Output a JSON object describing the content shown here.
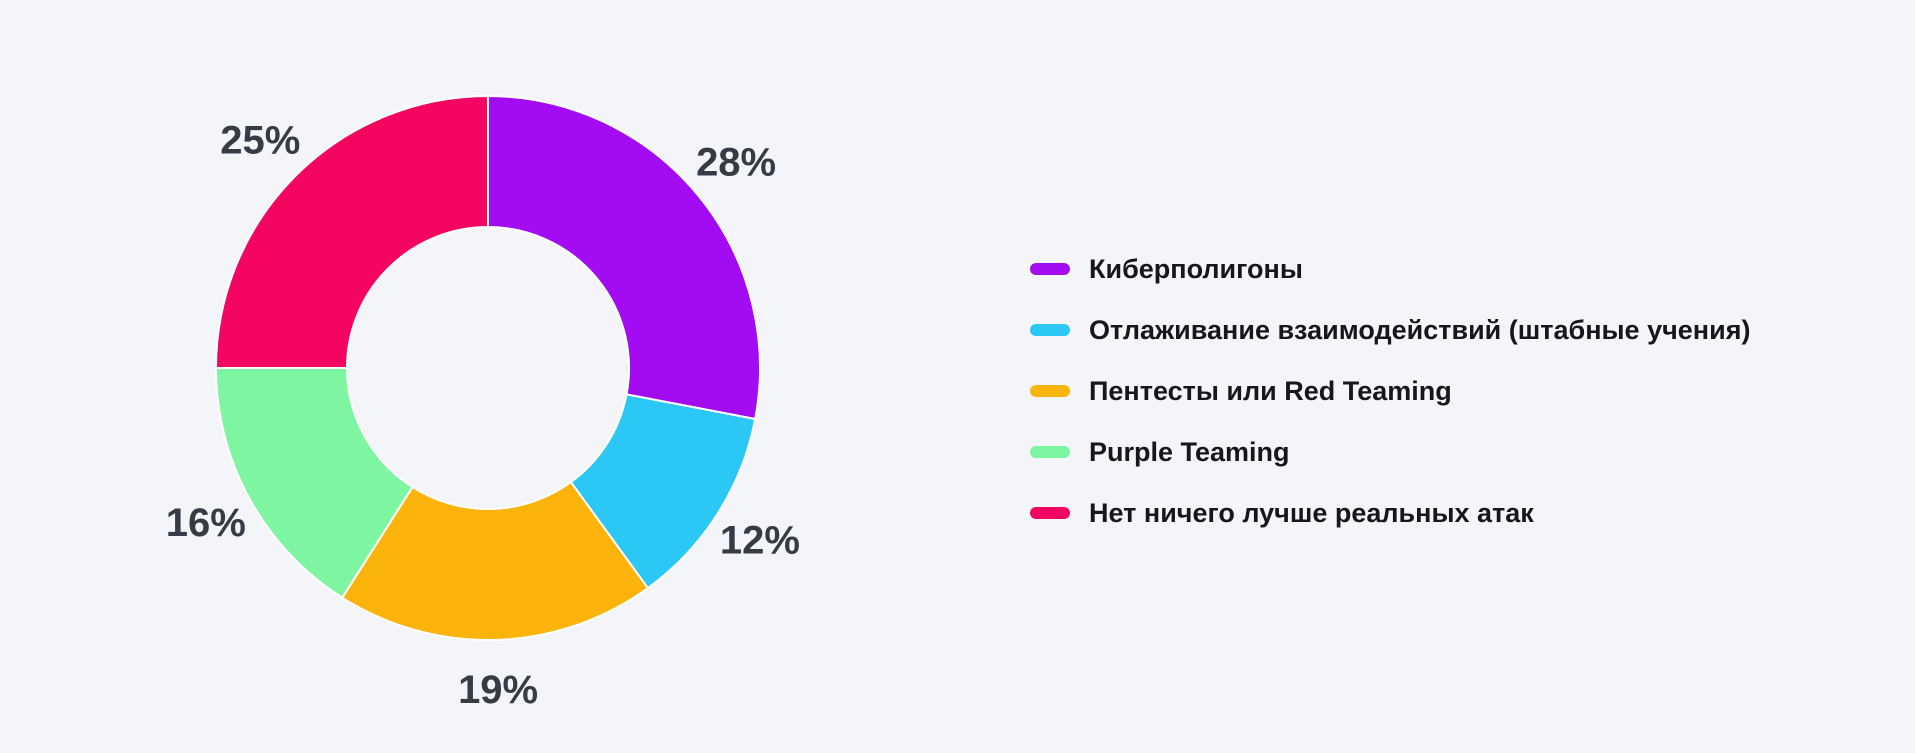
{
  "page": {
    "background_color": "#F4F5F9"
  },
  "chart_data": {
    "type": "pie",
    "subtype": "donut",
    "title": "",
    "categories": [
      "Киберполигоны",
      "Отлаживание взаимодействий (штабные учения)",
      "Пентесты или Red Teaming",
      "Purple Teaming",
      "Нет ничего лучше реальных атак"
    ],
    "values": [
      28,
      12,
      19,
      16,
      25
    ],
    "unit": "%",
    "percent_labels": [
      "28%",
      "12%",
      "19%",
      "16%",
      "25%"
    ],
    "colors": [
      "#A30BF2",
      "#2BC7F5",
      "#FCB30B",
      "#7DF5A1",
      "#F50562"
    ],
    "start_angle_deg": 0,
    "direction": "clockwise",
    "donut_hole_ratio": 0.52,
    "legend_position": "right",
    "percent_label_color": "#373B46",
    "legend_text_color": "#15171D",
    "slice_separator_color": "#FFFFFF"
  }
}
